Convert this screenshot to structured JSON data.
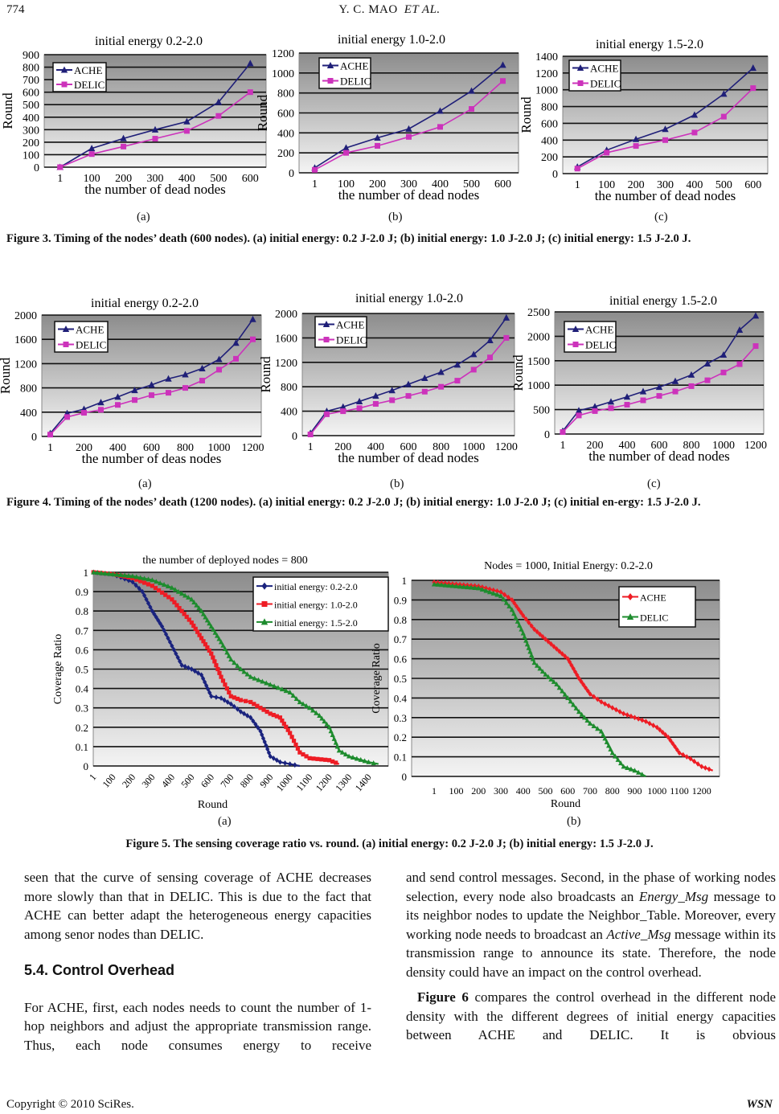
{
  "header": {
    "page_number": "774",
    "running_title": "Y. C. MAO",
    "running_title_italic": "ET   AL."
  },
  "figures": {
    "fig3": {
      "panel_labels": [
        "(a)",
        "(b)",
        "(c)"
      ],
      "caption": "Figure 3. Timing of the nodes’ death (600 nodes). (a) initial energy: 0.2 J-2.0 J; (b) initial energy: 1.0 J-2.0 J; (c) initial energy: 1.5 J-2.0 J."
    },
    "fig4": {
      "panel_labels": [
        "(a)",
        "(b)",
        "(c)"
      ],
      "caption": "Figure 4. Timing of the nodes’ death (1200 nodes). (a) initial energy: 0.2 J-2.0 J; (b) initial energy: 1.0 J-2.0 J; (c) initial en-ergy: 1.5 J-2.0 J."
    },
    "fig5": {
      "panel_labels": [
        "(a)",
        "(b)"
      ],
      "caption": "Figure 5. The sensing coverage ratio vs. round. (a) initial energy: 0.2 J-2.0 J; (b) initial energy: 1.5 J-2.0 J."
    }
  },
  "chart_data": [
    {
      "id": "3a",
      "type": "line",
      "title": "initial energy 0.2-2.0",
      "xlabel": "the number of dead nodes",
      "ylabel": "Round",
      "categories": [
        "1",
        "100",
        "200",
        "300",
        "400",
        "500",
        "600"
      ],
      "xtick_labels": [
        "1",
        "100",
        "200",
        "300",
        "400",
        "500",
        "600"
      ],
      "ylim": [
        0,
        900
      ],
      "yticks": [
        0,
        100,
        200,
        300,
        400,
        500,
        600,
        700,
        800,
        900
      ],
      "grid": true,
      "legend": "top-left",
      "series": [
        {
          "name": "ACHE",
          "color": "#1f1f78",
          "marker": "triangle",
          "values": [
            0,
            150,
            230,
            300,
            365,
            520,
            830
          ]
        },
        {
          "name": "DELIC",
          "color": "#cc33bb",
          "marker": "square",
          "values": [
            0,
            105,
            165,
            228,
            290,
            410,
            600
          ]
        }
      ]
    },
    {
      "id": "3b",
      "type": "line",
      "title": "initial energy 1.0-2.0",
      "xlabel": "the number of dead nodes",
      "ylabel": "Round",
      "categories": [
        "1",
        "100",
        "200",
        "300",
        "400",
        "500",
        "600"
      ],
      "xtick_labels": [
        "1",
        "100",
        "200",
        "300",
        "400",
        "500",
        "600"
      ],
      "ylim": [
        0,
        1200
      ],
      "yticks": [
        0,
        200,
        400,
        600,
        800,
        1000,
        1200
      ],
      "grid": true,
      "legend": "top-left",
      "series": [
        {
          "name": "ACHE",
          "color": "#1f1f78",
          "marker": "triangle",
          "values": [
            50,
            250,
            350,
            440,
            620,
            820,
            1080
          ]
        },
        {
          "name": "DELIC",
          "color": "#cc33bb",
          "marker": "square",
          "values": [
            30,
            200,
            270,
            360,
            460,
            640,
            920
          ]
        }
      ]
    },
    {
      "id": "3c",
      "type": "line",
      "title": "initial energy 1.5-2.0",
      "xlabel": "the number of dead nodes",
      "ylabel": "Round",
      "categories": [
        "1",
        "100",
        "200",
        "300",
        "400",
        "500",
        "600"
      ],
      "xtick_labels": [
        "1",
        "100",
        "200",
        "300",
        "400",
        "500",
        "600"
      ],
      "ylim": [
        0,
        1400
      ],
      "yticks": [
        0,
        200,
        400,
        600,
        800,
        1000,
        1200,
        1400
      ],
      "grid": true,
      "legend": "top-left",
      "series": [
        {
          "name": "ACHE",
          "color": "#1f1f78",
          "marker": "triangle",
          "values": [
            80,
            280,
            410,
            530,
            700,
            950,
            1260
          ]
        },
        {
          "name": "DELIC",
          "color": "#cc33bb",
          "marker": "square",
          "values": [
            60,
            250,
            330,
            400,
            490,
            680,
            1020
          ]
        }
      ]
    },
    {
      "id": "4a",
      "type": "line",
      "title": "initial energy 0.2-2.0",
      "xlabel": "the number of deas nodes",
      "ylabel": "Round",
      "categories": [
        "1",
        "100",
        "200",
        "300",
        "400",
        "500",
        "600",
        "700",
        "800",
        "900",
        "1000",
        "1100",
        "1200"
      ],
      "xtick_labels": [
        "1",
        "200",
        "400",
        "600",
        "800",
        "1000",
        "1200"
      ],
      "ylim": [
        0,
        2000
      ],
      "yticks": [
        0,
        400,
        800,
        1200,
        1600,
        2000
      ],
      "grid": true,
      "legend": "top-left",
      "series": [
        {
          "name": "ACHE",
          "color": "#1f1f78",
          "marker": "triangle",
          "values": [
            50,
            380,
            450,
            560,
            650,
            760,
            850,
            950,
            1020,
            1120,
            1270,
            1540,
            1930
          ]
        },
        {
          "name": "DELIC",
          "color": "#cc33bb",
          "marker": "square",
          "values": [
            30,
            320,
            390,
            440,
            520,
            600,
            680,
            720,
            800,
            920,
            1100,
            1280,
            1600
          ]
        }
      ]
    },
    {
      "id": "4b",
      "type": "line",
      "title": "initial energy 1.0-2.0",
      "xlabel": "the number of dead nodes",
      "ylabel": "Round",
      "categories": [
        "1",
        "100",
        "200",
        "300",
        "400",
        "500",
        "600",
        "700",
        "800",
        "900",
        "1000",
        "1100",
        "1200"
      ],
      "xtick_labels": [
        "1",
        "200",
        "400",
        "600",
        "800",
        "1000",
        "1200"
      ],
      "ylim": [
        0,
        2000
      ],
      "yticks": [
        0,
        400,
        800,
        1200,
        1600,
        2000
      ],
      "grid": true,
      "legend": "top-left",
      "series": [
        {
          "name": "ACHE",
          "color": "#1f1f78",
          "marker": "triangle",
          "values": [
            40,
            400,
            470,
            560,
            650,
            740,
            840,
            940,
            1040,
            1160,
            1330,
            1560,
            1930
          ]
        },
        {
          "name": "DELIC",
          "color": "#cc33bb",
          "marker": "square",
          "values": [
            20,
            350,
            400,
            450,
            520,
            580,
            650,
            720,
            800,
            900,
            1080,
            1280,
            1600
          ]
        }
      ]
    },
    {
      "id": "4c",
      "type": "line",
      "title": "initial energy 1.5-2.0",
      "xlabel": "the number of dead nodes",
      "ylabel": "Round",
      "categories": [
        "1",
        "100",
        "200",
        "300",
        "400",
        "500",
        "600",
        "700",
        "800",
        "900",
        "1000",
        "1100",
        "1200"
      ],
      "xtick_labels": [
        "1",
        "200",
        "400",
        "600",
        "800",
        "1000",
        "1200"
      ],
      "ylim": [
        0,
        2500
      ],
      "yticks": [
        0,
        500,
        1000,
        1500,
        2000,
        2500
      ],
      "grid": true,
      "legend": "top-left",
      "series": [
        {
          "name": "ACHE",
          "color": "#1f1f78",
          "marker": "triangle",
          "values": [
            60,
            480,
            560,
            660,
            760,
            870,
            960,
            1080,
            1210,
            1440,
            1620,
            2130,
            2420
          ]
        },
        {
          "name": "DELIC",
          "color": "#cc33bb",
          "marker": "square",
          "values": [
            40,
            380,
            470,
            530,
            600,
            690,
            780,
            870,
            980,
            1100,
            1260,
            1430,
            1800
          ]
        }
      ]
    },
    {
      "id": "5a",
      "type": "line",
      "title": "the number of deployed nodes = 800",
      "xlabel": "Round",
      "ylabel": "Coverage Ratio",
      "xlim": [
        0,
        1500
      ],
      "xtick_labels": [
        "1",
        "100",
        "200",
        "300",
        "400",
        "500",
        "600",
        "700",
        "800",
        "900",
        "1000",
        "1100",
        "1200",
        "1300",
        "1400"
      ],
      "ylim": [
        0,
        1
      ],
      "yticks": [
        0,
        0.1,
        0.2,
        0.3,
        0.4,
        0.5,
        0.6,
        0.7,
        0.8,
        0.9,
        1
      ],
      "grid": true,
      "legend": "top-right",
      "series": [
        {
          "name": "initial energy: 0.2-2.0",
          "color": "#1a237e",
          "marker": "diamond",
          "x": [
            1,
            100,
            200,
            250,
            300,
            350,
            400,
            450,
            500,
            550,
            600,
            650,
            700,
            750,
            800,
            850,
            900,
            950,
            1000,
            1050
          ],
          "values": [
            1,
            0.99,
            0.95,
            0.9,
            0.8,
            0.72,
            0.62,
            0.52,
            0.5,
            0.47,
            0.36,
            0.35,
            0.32,
            0.28,
            0.25,
            0.18,
            0.05,
            0.02,
            0.01,
            0
          ]
        },
        {
          "name": "initial energy: 1.0-2.0",
          "color": "#ee1c24",
          "marker": "square",
          "x": [
            1,
            100,
            200,
            300,
            400,
            500,
            550,
            600,
            650,
            700,
            750,
            800,
            850,
            900,
            950,
            1000,
            1050,
            1100,
            1200,
            1250
          ],
          "values": [
            1,
            0.99,
            0.97,
            0.93,
            0.86,
            0.74,
            0.66,
            0.58,
            0.46,
            0.36,
            0.34,
            0.33,
            0.3,
            0.27,
            0.25,
            0.17,
            0.07,
            0.04,
            0.03,
            0.01
          ]
        },
        {
          "name": "initial energy: 1.5-2.0",
          "color": "#1e8c2e",
          "marker": "triangle",
          "x": [
            1,
            100,
            200,
            300,
            400,
            500,
            550,
            600,
            650,
            700,
            750,
            800,
            900,
            1000,
            1050,
            1100,
            1150,
            1200,
            1250,
            1300,
            1400,
            1450
          ],
          "values": [
            1,
            0.99,
            0.98,
            0.96,
            0.92,
            0.86,
            0.8,
            0.72,
            0.64,
            0.55,
            0.5,
            0.46,
            0.42,
            0.38,
            0.33,
            0.3,
            0.26,
            0.2,
            0.08,
            0.05,
            0.02,
            0.01
          ]
        }
      ]
    },
    {
      "id": "5b",
      "type": "line",
      "title": "Nodes = 1000, Initial Energy: 0.2-2.0",
      "xlabel": "Round",
      "ylabel": "Coverage Ratio",
      "xlim": [
        -100,
        1280
      ],
      "xtick_labels": [
        "1",
        "100",
        "200",
        "300",
        "400",
        "500",
        "600",
        "700",
        "800",
        "900",
        "1000",
        "1100",
        "1200"
      ],
      "ylim": [
        0,
        1
      ],
      "yticks": [
        0,
        0.1,
        0.2,
        0.3,
        0.4,
        0.5,
        0.6,
        0.7,
        0.8,
        0.9,
        1
      ],
      "grid": true,
      "legend": "top-right",
      "series": [
        {
          "name": "ACHE",
          "color": "#ee1c24",
          "marker": "diamond",
          "x": [
            1,
            100,
            200,
            300,
            350,
            400,
            450,
            500,
            550,
            600,
            650,
            700,
            750,
            800,
            850,
            900,
            950,
            1000,
            1050,
            1100,
            1150,
            1200,
            1250
          ],
          "values": [
            0.99,
            0.98,
            0.97,
            0.94,
            0.9,
            0.82,
            0.75,
            0.7,
            0.65,
            0.6,
            0.5,
            0.42,
            0.38,
            0.35,
            0.32,
            0.3,
            0.28,
            0.25,
            0.2,
            0.12,
            0.09,
            0.05,
            0.03
          ]
        },
        {
          "name": "DELIC",
          "color": "#1e8c2e",
          "marker": "triangle",
          "x": [
            1,
            100,
            200,
            300,
            350,
            400,
            450,
            500,
            550,
            600,
            650,
            700,
            750,
            800,
            850,
            900,
            950
          ],
          "values": [
            0.98,
            0.97,
            0.96,
            0.92,
            0.85,
            0.73,
            0.58,
            0.52,
            0.47,
            0.4,
            0.33,
            0.27,
            0.23,
            0.12,
            0.05,
            0.03,
            0
          ]
        }
      ]
    }
  ],
  "body": {
    "left_p1": "seen that the curve of sensing coverage of ACHE decreases more slowly than that in DELIC. This is due to the fact that ACHE can better adapt the heterogeneous energy capacities among senor nodes than DELIC.",
    "section_heading": "5.4. Control Overhead",
    "left_p2": "For ACHE, first, each nodes needs to count the number of 1-hop neighbors and adjust the appropriate transmission range. Thus, each node consumes energy to receive",
    "right_p1": [
      "and send control messages. Second, in the phase of working nodes selection, every node also broadcasts an ",
      "Energy_Msg",
      " message to its neighbor nodes to update the Neighbor_Table. Moreover, every working node needs to broadcast an ",
      "Active_Msg",
      " message within its transmission range to announce its state. Therefore, the node density could have an impact on the control overhead."
    ],
    "right_p2": [
      "Figure 6",
      " compares the control overhead in the different node density with the different degrees of initial energy capacities between ACHE and DELIC. It is obvious"
    ]
  },
  "footer": {
    "copyright": "Copyright © 2010 SciRes.",
    "journal": "WSN"
  }
}
